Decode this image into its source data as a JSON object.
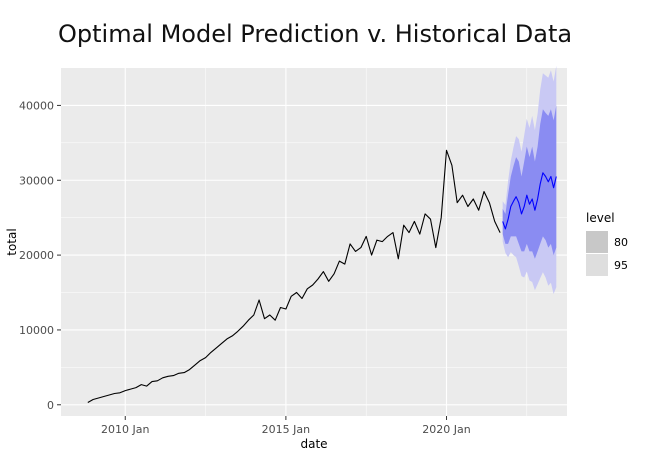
{
  "chart_data": {
    "type": "line",
    "title": "Optimal Model Prediction v. Historical Data",
    "xlabel": "date",
    "ylabel": "total",
    "xlim": [
      "2008-01",
      "2023-10"
    ],
    "ylim": [
      -1500,
      45000
    ],
    "x_ticks": [
      "2010 Jan",
      "2015 Jan",
      "2020 Jan"
    ],
    "x_tick_dates": [
      "2010-01",
      "2015-01",
      "2020-01"
    ],
    "y_ticks": [
      0,
      10000,
      20000,
      30000,
      40000
    ],
    "y_tick_labels": [
      "0",
      "10000",
      "20000",
      "30000",
      "40000"
    ],
    "grid": true,
    "legend": {
      "title": "level",
      "position": "right",
      "entries": [
        {
          "label": "80",
          "color": "#c8c8c8"
        },
        {
          "label": "95",
          "color": "#dedede"
        }
      ]
    },
    "colors": {
      "panel_background": "#ebebeb",
      "grid": "#ffffff",
      "history_line": "#000000",
      "forecast_line": "#0000ff",
      "band_80": "#8a8cf2",
      "band_95": "#c9c9f4"
    },
    "series": [
      {
        "role": "history",
        "x": [
          "2008-11",
          "2009-01",
          "2009-03",
          "2009-05",
          "2009-07",
          "2009-09",
          "2009-11",
          "2010-01",
          "2010-03",
          "2010-05",
          "2010-07",
          "2010-09",
          "2010-11",
          "2011-01",
          "2011-03",
          "2011-05",
          "2011-07",
          "2011-09",
          "2011-11",
          "2012-01",
          "2012-03",
          "2012-05",
          "2012-07",
          "2012-09",
          "2012-11",
          "2013-01",
          "2013-03",
          "2013-05",
          "2013-07",
          "2013-09",
          "2013-11",
          "2014-01",
          "2014-03",
          "2014-05",
          "2014-07",
          "2014-09",
          "2014-11",
          "2015-01",
          "2015-03",
          "2015-05",
          "2015-07",
          "2015-09",
          "2015-11",
          "2016-01",
          "2016-03",
          "2016-05",
          "2016-07",
          "2016-09",
          "2016-11",
          "2017-01",
          "2017-03",
          "2017-05",
          "2017-07",
          "2017-09",
          "2017-11",
          "2018-01",
          "2018-03",
          "2018-05",
          "2018-07",
          "2018-09",
          "2018-11",
          "2019-01",
          "2019-03",
          "2019-05",
          "2019-07",
          "2019-09",
          "2019-11",
          "2020-01",
          "2020-03",
          "2020-05",
          "2020-07",
          "2020-09",
          "2020-11",
          "2021-01",
          "2021-03",
          "2021-05",
          "2021-07",
          "2021-09"
        ],
        "values": [
          300,
          700,
          900,
          1100,
          1300,
          1500,
          1600,
          1900,
          2100,
          2300,
          2700,
          2500,
          3100,
          3200,
          3600,
          3800,
          3900,
          4200,
          4300,
          4700,
          5300,
          5900,
          6300,
          7000,
          7600,
          8200,
          8800,
          9200,
          9800,
          10500,
          11300,
          12000,
          14000,
          11500,
          12000,
          11300,
          13000,
          12800,
          14500,
          15000,
          14200,
          15500,
          16000,
          16800,
          17800,
          16500,
          17500,
          19200,
          18800,
          21500,
          20500,
          21000,
          22500,
          20000,
          22000,
          21800,
          22500,
          23000,
          19500,
          24000,
          23000,
          24500,
          22800,
          25500,
          24800,
          21000,
          25000,
          34000,
          32000,
          27000,
          28000,
          26500,
          27500,
          26000,
          28500,
          27000,
          24500,
          23000
        ]
      },
      {
        "role": "forecast",
        "x": [
          "2021-10",
          "2021-11",
          "2021-12",
          "2022-01",
          "2022-02",
          "2022-03",
          "2022-04",
          "2022-05",
          "2022-06",
          "2022-07",
          "2022-08",
          "2022-09",
          "2022-10",
          "2022-11",
          "2022-12",
          "2023-01",
          "2023-02",
          "2023-03",
          "2023-04",
          "2023-05",
          "2023-06"
        ],
        "values": [
          24500,
          23500,
          24800,
          26500,
          27200,
          27800,
          27000,
          25500,
          26500,
          28000,
          26800,
          27500,
          26000,
          27500,
          29500,
          31000,
          30500,
          29800,
          30500,
          29000,
          30500
        ],
        "lo80": [
          22800,
          21500,
          21500,
          22500,
          22500,
          22500,
          21500,
          20500,
          20500,
          21500,
          20500,
          20500,
          19500,
          20500,
          21500,
          22500,
          22000,
          21000,
          21500,
          20000,
          21000
        ],
        "hi80": [
          26200,
          25500,
          28100,
          30500,
          31900,
          33100,
          32500,
          30500,
          32500,
          34500,
          33100,
          34500,
          32500,
          34500,
          37500,
          39500,
          39000,
          38600,
          39500,
          38000,
          40000
        ],
        "lo95": [
          21800,
          20300,
          19700,
          20400,
          20000,
          19700,
          18500,
          17200,
          17000,
          17800,
          16600,
          16400,
          15300,
          16100,
          16900,
          17700,
          17000,
          15900,
          16300,
          14800,
          15700
        ],
        "hi95": [
          27200,
          26700,
          29900,
          32600,
          34400,
          35900,
          35500,
          33800,
          36000,
          38200,
          37000,
          38600,
          36700,
          38900,
          42100,
          44300,
          44000,
          43700,
          44700,
          43200,
          45300
        ]
      }
    ]
  }
}
